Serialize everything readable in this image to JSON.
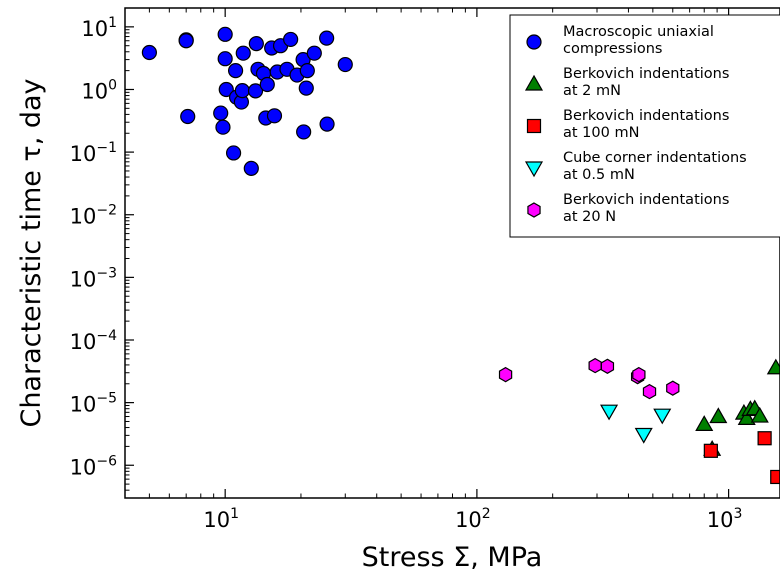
{
  "chart_data": {
    "type": "scatter",
    "xlabel": "Stress Σ, MPa",
    "ylabel": "Characteristic time τ, day",
    "xscale": "log",
    "yscale": "log",
    "xlim": [
      4,
      1600
    ],
    "ylim": [
      3e-07,
      20
    ],
    "x_ticks": [
      10,
      100,
      1000
    ],
    "x_tick_labels": [
      {
        "base": "10",
        "exp": "1"
      },
      {
        "base": "10",
        "exp": "2"
      },
      {
        "base": "10",
        "exp": "3"
      }
    ],
    "y_ticks": [
      1e-06,
      1e-05,
      0.0001,
      0.001,
      0.01,
      0.1,
      1,
      10
    ],
    "y_tick_labels": [
      {
        "base": "10",
        "exp": "−6"
      },
      {
        "base": "10",
        "exp": "−5"
      },
      {
        "base": "10",
        "exp": "−4"
      },
      {
        "base": "10",
        "exp": "−3"
      },
      {
        "base": "10",
        "exp": "−2"
      },
      {
        "base": "10",
        "exp": "−1"
      },
      {
        "base": "10",
        "exp": "0"
      },
      {
        "base": "10",
        "exp": "1"
      }
    ],
    "grid": false,
    "legend_position": "top-right",
    "series": [
      {
        "name": "Macroscopic uniaxial compressions",
        "label_lines": [
          "Macroscopic uniaxial",
          "compressions"
        ],
        "marker": "circle",
        "color": "#0000ff",
        "points": [
          [
            5.0,
            3.9
          ],
          [
            7.0,
            6.2
          ],
          [
            7.0,
            6.0
          ],
          [
            7.1,
            0.37
          ],
          [
            9.6,
            0.42
          ],
          [
            9.8,
            0.25
          ],
          [
            10.0,
            7.6
          ],
          [
            10.0,
            3.1
          ],
          [
            10.1,
            1.0
          ],
          [
            10.8,
            0.097
          ],
          [
            11.0,
            2.0
          ],
          [
            11.1,
            0.75
          ],
          [
            11.6,
            0.63
          ],
          [
            11.7,
            0.96
          ],
          [
            11.8,
            3.8
          ],
          [
            12.7,
            0.055
          ],
          [
            13.2,
            0.95
          ],
          [
            13.3,
            5.4
          ],
          [
            13.5,
            2.1
          ],
          [
            14.2,
            1.8
          ],
          [
            14.5,
            0.35
          ],
          [
            14.7,
            1.2
          ],
          [
            15.3,
            4.6
          ],
          [
            15.7,
            0.38
          ],
          [
            16.1,
            1.9
          ],
          [
            16.6,
            5.0
          ],
          [
            17.6,
            2.1
          ],
          [
            18.2,
            6.3
          ],
          [
            19.3,
            1.7
          ],
          [
            20.4,
            3.0
          ],
          [
            20.5,
            0.21
          ],
          [
            21.0,
            1.05
          ],
          [
            21.2,
            2.0
          ],
          [
            22.6,
            3.8
          ],
          [
            25.3,
            6.6
          ],
          [
            25.4,
            0.28
          ],
          [
            30.0,
            2.5
          ]
        ]
      },
      {
        "name": "Berkovich indentations at 2 mN",
        "label_lines": [
          "Berkovich indentations",
          "at 2 mN"
        ],
        "marker": "triangle-up",
        "color": "#007f00",
        "points": [
          [
            800,
            4.5e-06
          ],
          [
            860,
            1.8e-06
          ],
          [
            910,
            6e-06
          ],
          [
            1150,
            6.8e-06
          ],
          [
            1180,
            5.6e-06
          ],
          [
            1220,
            7.8e-06
          ],
          [
            1270,
            8e-06
          ],
          [
            1330,
            6.1e-06
          ],
          [
            1540,
            3.6e-05
          ]
        ]
      },
      {
        "name": "Berkovich indentations at 100 mN",
        "label_lines": [
          "Berkovich indentations",
          "at 100 mN"
        ],
        "marker": "square",
        "color": "#ff0000",
        "points": [
          [
            850,
            1.7e-06
          ],
          [
            1390,
            2.7e-06
          ],
          [
            1560,
            6.5e-07
          ]
        ]
      },
      {
        "name": "Cube corner indentations at 0.5 mN",
        "label_lines": [
          "Cube corner indentations",
          "at 0.5 mN"
        ],
        "marker": "triangle-down",
        "color": "#00ffff",
        "points": [
          [
            335,
            7.3e-06
          ],
          [
            460,
            3.1e-06
          ],
          [
            545,
            6.3e-06
          ]
        ]
      },
      {
        "name": "Berkovich indentations at 20 N",
        "label_lines": [
          "Berkovich indentations",
          "at 20 N"
        ],
        "marker": "hexagon",
        "color": "#ff00ff",
        "points": [
          [
            130,
            2.8e-05
          ],
          [
            295,
            3.9e-05
          ],
          [
            330,
            3.8e-05
          ],
          [
            435,
            2.6e-05
          ],
          [
            440,
            2.8e-05
          ],
          [
            485,
            1.5e-05
          ],
          [
            600,
            1.7e-05
          ]
        ]
      }
    ]
  }
}
